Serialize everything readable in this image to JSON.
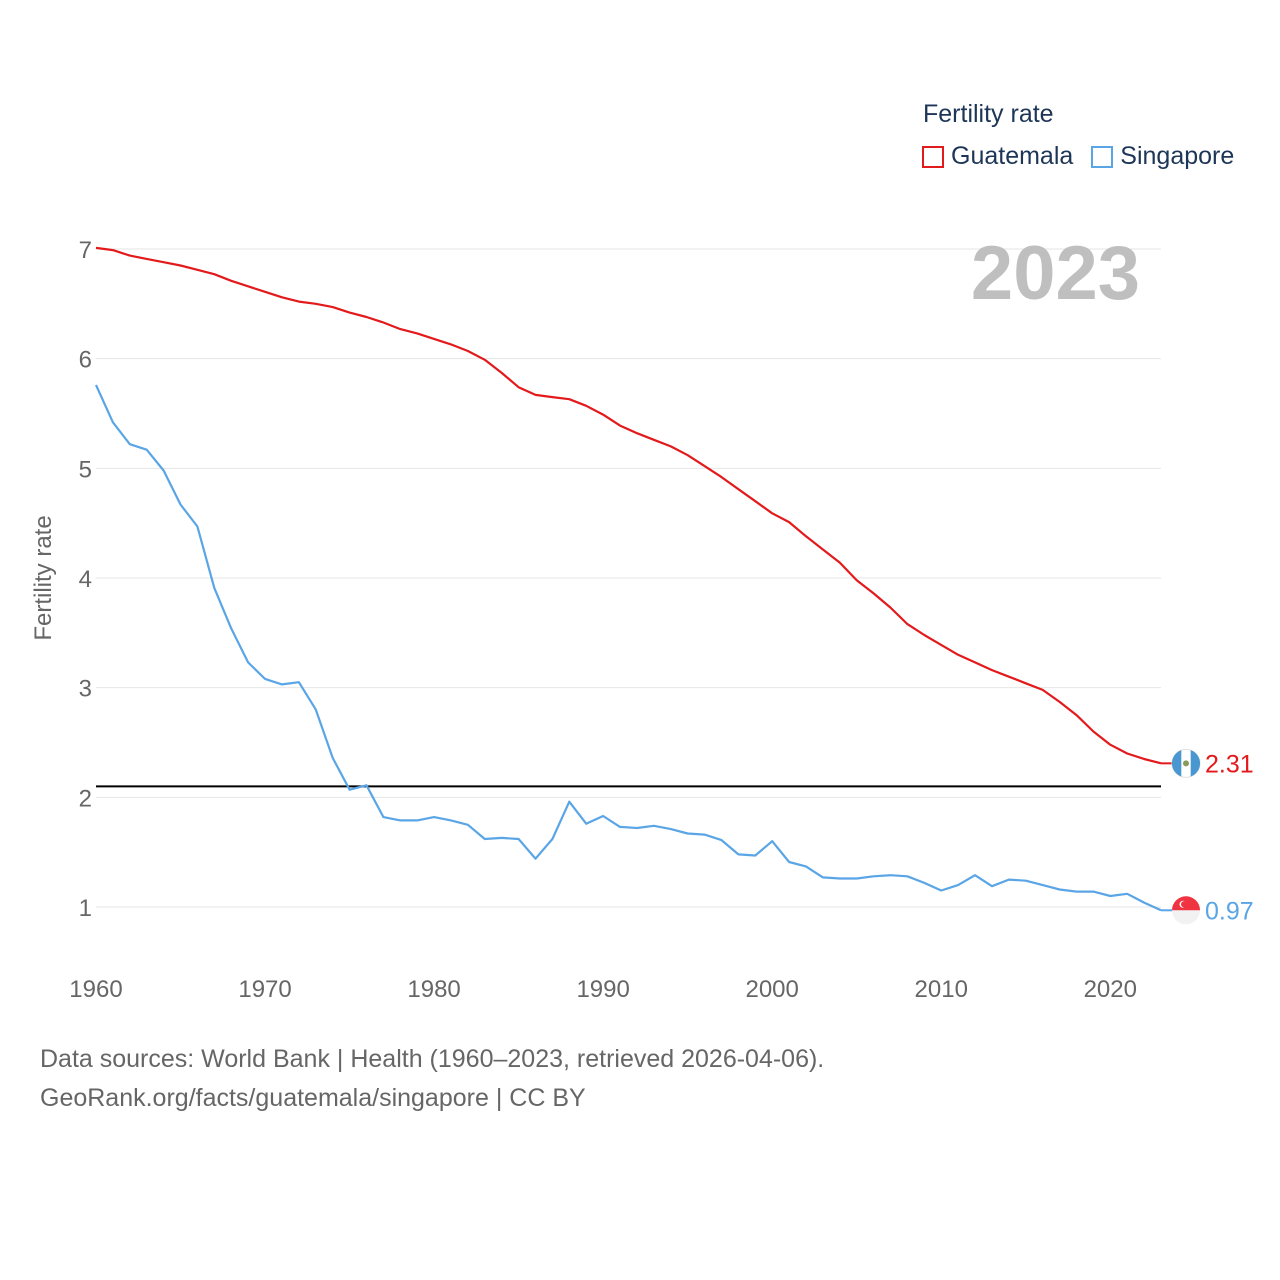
{
  "legend": {
    "title": "Fertility rate",
    "items": [
      {
        "label": "Guatemala",
        "color": "#e31a1c"
      },
      {
        "label": "Singapore",
        "color": "#5aa5e6"
      }
    ]
  },
  "year_label": "2023",
  "footer": {
    "line1": "Data sources: World Bank | Health (1960–2023, retrieved 2026-04-06).",
    "line2": "GeoRank.org/facts/guatemala/singapore | CC BY"
  },
  "chart_data": {
    "type": "line",
    "title": "Fertility rate",
    "xlabel": "",
    "ylabel": "Fertility rate",
    "xlim": [
      1960,
      2023
    ],
    "ylim": [
      0.4,
      7.2
    ],
    "x_ticks": [
      1960,
      1970,
      1980,
      1990,
      2000,
      2010,
      2020
    ],
    "y_ticks": [
      1,
      2,
      3,
      4,
      5,
      6,
      7
    ],
    "grid": true,
    "reference_line": 2.1,
    "x": [
      1960,
      1961,
      1962,
      1963,
      1964,
      1965,
      1966,
      1967,
      1968,
      1969,
      1970,
      1971,
      1972,
      1973,
      1974,
      1975,
      1976,
      1977,
      1978,
      1979,
      1980,
      1981,
      1982,
      1983,
      1984,
      1985,
      1986,
      1987,
      1988,
      1989,
      1990,
      1991,
      1992,
      1993,
      1994,
      1995,
      1996,
      1997,
      1998,
      1999,
      2000,
      2001,
      2002,
      2003,
      2004,
      2005,
      2006,
      2007,
      2008,
      2009,
      2010,
      2011,
      2012,
      2013,
      2014,
      2015,
      2016,
      2017,
      2018,
      2019,
      2020,
      2021,
      2022,
      2023
    ],
    "series": [
      {
        "name": "Guatemala",
        "color": "#e31a1c",
        "end_label": "2.31",
        "values": [
          7.01,
          6.99,
          6.94,
          6.91,
          6.88,
          6.85,
          6.81,
          6.77,
          6.71,
          6.66,
          6.61,
          6.56,
          6.52,
          6.5,
          6.47,
          6.42,
          6.38,
          6.33,
          6.27,
          6.23,
          6.18,
          6.13,
          6.07,
          5.99,
          5.87,
          5.74,
          5.67,
          5.65,
          5.63,
          5.57,
          5.49,
          5.39,
          5.32,
          5.26,
          5.2,
          5.12,
          5.02,
          4.92,
          4.81,
          4.7,
          4.59,
          4.51,
          4.38,
          4.26,
          4.14,
          3.98,
          3.86,
          3.73,
          3.58,
          3.48,
          3.39,
          3.3,
          3.23,
          3.16,
          3.1,
          3.04,
          2.98,
          2.87,
          2.75,
          2.6,
          2.48,
          2.4,
          2.35,
          2.31
        ]
      },
      {
        "name": "Singapore",
        "color": "#5aa5e6",
        "end_label": "0.97",
        "values": [
          5.76,
          5.42,
          5.22,
          5.17,
          4.98,
          4.67,
          4.47,
          3.91,
          3.54,
          3.23,
          3.08,
          3.03,
          3.05,
          2.8,
          2.36,
          2.07,
          2.11,
          1.82,
          1.79,
          1.79,
          1.82,
          1.79,
          1.75,
          1.62,
          1.63,
          1.62,
          1.44,
          1.62,
          1.96,
          1.76,
          1.83,
          1.73,
          1.72,
          1.74,
          1.71,
          1.67,
          1.66,
          1.61,
          1.48,
          1.47,
          1.6,
          1.41,
          1.37,
          1.27,
          1.26,
          1.26,
          1.28,
          1.29,
          1.28,
          1.22,
          1.15,
          1.2,
          1.29,
          1.19,
          1.25,
          1.24,
          1.2,
          1.16,
          1.14,
          1.14,
          1.1,
          1.12,
          1.04,
          0.97
        ]
      }
    ]
  }
}
